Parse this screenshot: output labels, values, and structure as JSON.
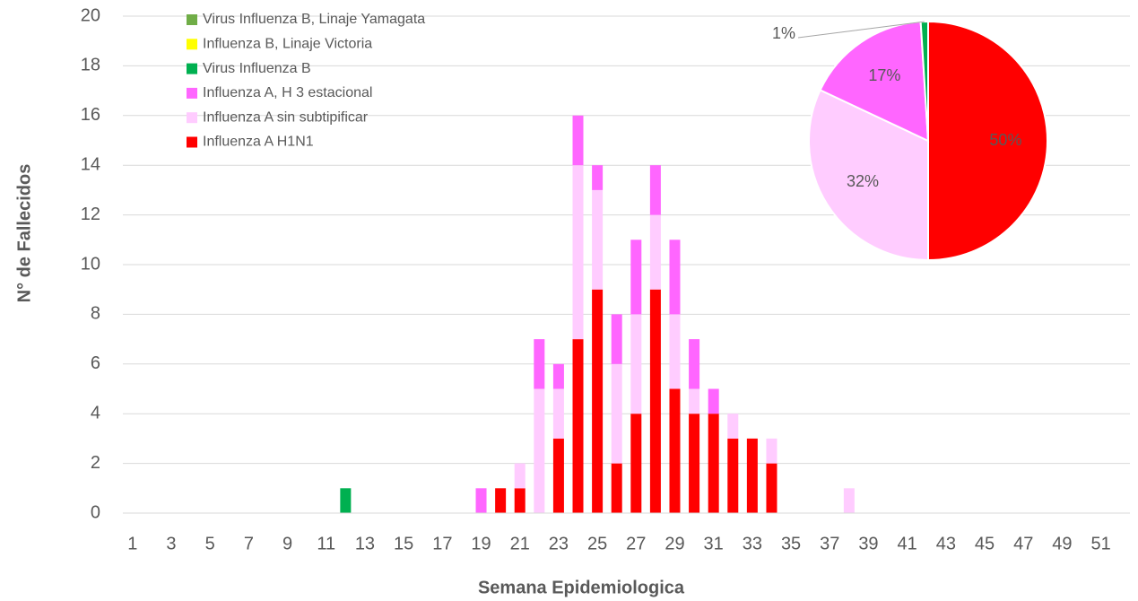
{
  "chart_data": [
    {
      "type": "bar",
      "stacked": true,
      "y_label": "N° de Fallecidos",
      "x_label": "Semana Epidemiologica",
      "categories": [
        1,
        null,
        3,
        null,
        5,
        null,
        7,
        null,
        9,
        null,
        11,
        null,
        13,
        null,
        15,
        null,
        17,
        null,
        19,
        null,
        21,
        null,
        23,
        null,
        25,
        null,
        27,
        null,
        29,
        null,
        31,
        null,
        33,
        null,
        35,
        null,
        37,
        null,
        39,
        null,
        41,
        null,
        43,
        null,
        45,
        null,
        47,
        null,
        49,
        null,
        51,
        null
      ],
      "ylim": [
        0,
        20
      ],
      "yticks": [
        0,
        2,
        4,
        6,
        8,
        10,
        12,
        14,
        16,
        18,
        20
      ],
      "grid": true,
      "legend": "top-left",
      "series": [
        {
          "name": "Influenza A H1N1",
          "color": "#ff0000",
          "values": [
            0,
            0,
            0,
            0,
            0,
            0,
            0,
            0,
            0,
            0,
            0,
            0,
            0,
            0,
            0,
            0,
            0,
            0,
            0,
            1,
            1,
            0,
            3,
            7,
            9,
            2,
            4,
            9,
            5,
            4,
            4,
            3,
            3,
            2,
            0,
            0,
            0,
            0,
            0,
            0,
            0,
            0,
            0,
            0,
            0,
            0,
            0,
            0,
            0,
            0,
            0,
            0
          ]
        },
        {
          "name": "Influenza A sin subtipificar",
          "color": "#ffccff",
          "values": [
            0,
            0,
            0,
            0,
            0,
            0,
            0,
            0,
            0,
            0,
            0,
            0,
            0,
            0,
            0,
            0,
            0,
            0,
            0,
            0,
            1,
            5,
            2,
            7,
            4,
            4,
            4,
            3,
            3,
            1,
            0,
            1,
            0,
            1,
            0,
            0,
            0,
            1,
            0,
            0,
            0,
            0,
            0,
            0,
            0,
            0,
            0,
            0,
            0,
            0,
            0,
            0
          ]
        },
        {
          "name": "Influenza A, H 3 estacional",
          "color": "#ff66ff",
          "values": [
            0,
            0,
            0,
            0,
            0,
            0,
            0,
            0,
            0,
            0,
            0,
            0,
            0,
            0,
            0,
            0,
            0,
            0,
            1,
            0,
            0,
            2,
            1,
            2,
            1,
            2,
            3,
            2,
            3,
            2,
            1,
            0,
            0,
            0,
            0,
            0,
            0,
            0,
            0,
            0,
            0,
            0,
            0,
            0,
            0,
            0,
            0,
            0,
            0,
            0,
            0,
            0
          ]
        },
        {
          "name": "Virus Influenza B",
          "color": "#00b050",
          "values": [
            0,
            0,
            0,
            0,
            0,
            0,
            0,
            0,
            0,
            0,
            0,
            1,
            0,
            0,
            0,
            0,
            0,
            0,
            0,
            0,
            0,
            0,
            0,
            0,
            0,
            0,
            0,
            0,
            0,
            0,
            0,
            0,
            0,
            0,
            0,
            0,
            0,
            0,
            0,
            0,
            0,
            0,
            0,
            0,
            0,
            0,
            0,
            0,
            0,
            0,
            0,
            0
          ]
        },
        {
          "name": "Influenza B, Linaje Victoria",
          "color": "#ffff00",
          "values": [
            0,
            0,
            0,
            0,
            0,
            0,
            0,
            0,
            0,
            0,
            0,
            0,
            0,
            0,
            0,
            0,
            0,
            0,
            0,
            0,
            0,
            0,
            0,
            0,
            0,
            0,
            0,
            0,
            0,
            0,
            0,
            0,
            0,
            0,
            0,
            0,
            0,
            0,
            0,
            0,
            0,
            0,
            0,
            0,
            0,
            0,
            0,
            0,
            0,
            0,
            0,
            0
          ]
        },
        {
          "name": "Virus Influenza B, Linaje Yamagata",
          "color": "#70ad47",
          "values": [
            0,
            0,
            0,
            0,
            0,
            0,
            0,
            0,
            0,
            0,
            0,
            0,
            0,
            0,
            0,
            0,
            0,
            0,
            0,
            0,
            0,
            0,
            0,
            0,
            0,
            0,
            0,
            0,
            0,
            0,
            0,
            0,
            0,
            0,
            0,
            0,
            0,
            0,
            0,
            0,
            0,
            0,
            0,
            0,
            0,
            0,
            0,
            0,
            0,
            0,
            0,
            0
          ]
        }
      ]
    },
    {
      "type": "pie",
      "values": [
        50,
        32,
        17,
        1
      ],
      "value_labels": [
        "50%",
        "32%",
        "17%",
        "1%"
      ],
      "colors": [
        "#ff0000",
        "#ffccff",
        "#ff66ff",
        "#00b050"
      ]
    }
  ]
}
